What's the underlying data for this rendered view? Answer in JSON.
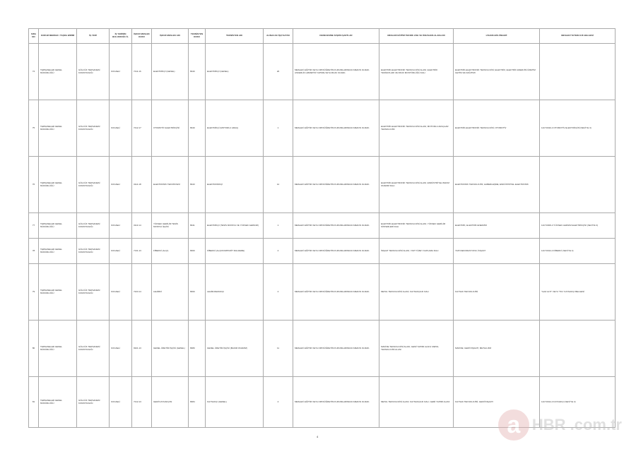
{
  "headers": [
    "SIRA NO",
    "KURUM MERKEZ / TAŞRA BİRİMİ",
    "İŞ YERİ",
    "İŞ YERİNİN BULUNDUĞU İL",
    "İŞKUR MESLEK KODU",
    "İŞKUR MESLEK ADI",
    "TEKNİSYEN KODU",
    "TEKNİSYEN ADI",
    "ALINACAK İŞÇİ SAYISI",
    "DERECESİNE İLİŞKİN ŞARTLAR",
    "MESLEKİ EĞİTİM TEKNİK LİSE VE ÖNLİSANS ALANLARI",
    "LİSANS BÖLÜMLERİ",
    "MESLEKİ YETERLİLİK BELGESİ"
  ],
  "rows": [
    {
      "no": "74",
      "unit": "TERSANELER GENEL MÜDÜRLÜĞÜ",
      "site": "GÖLCÜK TERSANESİ KOMUTANLIĞI",
      "city": "KOCAELİ",
      "code": "7411.16",
      "job": "ELEKTRİKÇİ (GENEL)",
      "tcode": "8340",
      "tname": "ELEKTRİKÇİ (GENEL)",
      "count": "20",
      "req": "MESLEKİ EĞİTİM VEYA ORTAÖĞRETİM KURUMLARINDAN MEZUN OLMAK. ASKERLİK HİZMETİNİ YAPMIŞ VEYA MUAF OLMAK.",
      "voc": "ELEKTRİK-ELEKTRONİK TEKNOLOJİSİ ALANI; ELEKTRİK TESİSATLARI VE PANO MONTÖRLÜĞÜ DALI",
      "lic": "ELEKTRİK-ELEKTRONİK TEKNOLOJİSİ; ELEKTRİK; ELEKTRİK ENERJİSİ ÜRETİM İLETİM VE DAĞITIMI",
      "mesl": ""
    },
    {
      "no": "75",
      "unit": "TERSANELER GENEL MÜDÜRLÜĞÜ",
      "site": "GÖLCÜK TERSANESİ KOMUTANLIĞI",
      "city": "KOCAELİ",
      "code": "7412.17",
      "job": "OTOMOTİV ELEKTRİKÇİSİ",
      "tcode": "8340",
      "tname": "ELEKTRİKÇİ (MOTORLU ARAÇ)",
      "count": "1",
      "req": "MESLEKİ EĞİTİM VEYA ORTAÖĞRETİM KURUMLARINDAN MEZUN OLMAK.",
      "voc": "ELEKTRİK-ELEKTRONİK TEKNOLOJİSİ ALANI; MOTORLU ARAÇLAR TEKNOLOJİSİ",
      "lic": "ELEKTRİK-ELEKTRONİK TEKNOLOJİSİ; OTOMOTİV",
      "mesl": "11UY0010-3 OTOMOTİV ELEKTRİKÇİSİ (SEVİYE 3)"
    },
    {
      "no": "76",
      "unit": "TERSANELER GENEL MÜDÜRLÜĞÜ",
      "site": "GÖLCÜK TERSANESİ KOMUTANLIĞI",
      "city": "KOCAELİ",
      "code": "3114.18",
      "job": "ELEKTRONİK TEKNİSYENİ",
      "tcode": "8343",
      "tname": "ELEKTRONİKÇİ",
      "count": "12",
      "req": "MESLEKİ EĞİTİM VEYA ORTAÖĞRETİM KURUMLARINDAN MEZUN OLMAK.",
      "voc": "ELEKTRİK-ELEKTRONİK TEKNOLOJİSİ ALANI; ENDÜSTRİYEL BAKIM ONARIM DALI",
      "lic": "ELEKTRONİK TEKNOLOJİSİ; HABERLEŞME; ENDÜSTRİYEL ELEKTRONİK",
      "mesl": ""
    },
    {
      "no": "77",
      "unit": "TERSANELER GENEL MÜDÜRLÜĞÜ",
      "site": "GÖLCÜK TERSANESİ KOMUTANLIĞI",
      "city": "KOCAELİ",
      "code": "3113.14",
      "job": "YÜKSEK GERİLİM TESİS MONTAJ İŞÇİSİ",
      "tcode": "8341",
      "tname": "ELEKTRİKÇİ (TESİS MONTAJ VE YÜKSEK GERİLİM)",
      "count": "1",
      "req": "MESLEKİ EĞİTİM VEYA ORTAÖĞRETİM KURUMLARINDAN MEZUN OLMAK.",
      "voc": "ELEKTRİK-ELEKTRONİK TEKNOLOJİSİ ALANI; YÜKSEK GERİLİM SİSTEMLERİ DALI",
      "lic": "ELEKTRİK; ELEKTRİK ENERJİSİ",
      "mesl": "11UY0006-3 YÜKSEK GERİLİM ELEKTRİKÇİSİ (SEVİYE 3)"
    },
    {
      "no": "78",
      "unit": "TERSANELER GENEL MÜDÜRLÜĞÜ",
      "site": "GÖLCÜK TERSANESİ KOMUTANLIĞI",
      "city": "KOCAELİ",
      "code": "7131.13",
      "job": "FİBERCİ (ALÇI)",
      "tcode": "8360",
      "tname": "FİBERCİ (ALÇI/KOMPOZİT MALZEME)",
      "count": "4",
      "req": "MESLEKİ EĞİTİM VEYA ORTAÖĞRETİM KURUMLARINDAN MEZUN OLMAK.",
      "voc": "İNŞAAT TEKNOLOJİSİ ALANI; YAPI YÜZEY KAPLAMA DALI",
      "lic": "YAPI DEKORASYONU; İNŞAAT",
      "mesl": "11UY0014-3 FİBERCİ (SEVİYE 3)"
    },
    {
      "no": "79",
      "unit": "TERSANELER GENEL MÜDÜRLÜĞÜ",
      "site": "GÖLCÜK TERSANESİ KOMUTANLIĞI",
      "city": "KOCAELİ",
      "code": "7223.14",
      "job": "LEHİMCİ",
      "tcode": "8360",
      "tname": "LEHİM-REMAKÇI",
      "count": "4",
      "req": "MESLEKİ EĞİTİM VEYA ORTAÖĞRETİM KURUMLARINDAN MEZUN OLMAK.",
      "voc": "METAL TEKNOLOJİSİ ALANI; KAYNAKÇILIK DALI",
      "lic": "KAYNAK TEKNOLOJİSİ",
      "mesl": "\"GAZ ALTI\" VEYA \"TIG\" KAYNAKÇI BELGESİ"
    },
    {
      "no": "80",
      "unit": "TERSANELER GENEL MÜDÜRLÜĞÜ",
      "site": "GÖLCÜK TERSANESİ KOMUTANLIĞI",
      "city": "KOCAELİ",
      "code": "9321.13",
      "job": "GENEL ÜRETİM İŞÇİSİ (GENEL)",
      "tcode": "8380",
      "tname": "GENEL ÜRETİM İŞÇİSİ (BAKIM ONARIM)",
      "count": "11",
      "req": "MESLEKİ EĞİTİM VEYA ORTAÖĞRETİM KURUMLARINDAN MEZUN OLMAK.",
      "voc": "MAKİNE TEKNOLOJİSİ ALANI; GEMİ YAPIMI ALANI; METAL TEKNOLOJİSİ ALANI",
      "lic": "MAKİNE; GEMİ İNŞAATI; METALURJİ",
      "mesl": ""
    },
    {
      "no": "81",
      "unit": "TERSANELER GENEL MÜDÜRLÜĞÜ",
      "site": "GÖLCÜK TERSANESİ KOMUTANLIĞI",
      "city": "KOCAELİ",
      "code": "7212.13",
      "job": "GEMİ KAYNAKÇISI",
      "tcode": "8384",
      "tname": "KAYNAKÇI (GENEL)",
      "count": "4",
      "req": "MESLEKİ EĞİTİM VEYA ORTAÖĞRETİM KURUMLARINDAN MEZUN OLMAK.",
      "voc": "METAL TEKNOLOJİSİ ALANI; KAYNAKÇILIK DALI; GEMİ YAPIMI ALANI",
      "lic": "KAYNAK TEKNOLOJİSİ; GEMİ İNŞAATI",
      "mesl": "11UY0014-3 KAYNAKÇI (SEVİYE 3)"
    }
  ],
  "page_number": "4",
  "watermark": "HBR .com.tr"
}
